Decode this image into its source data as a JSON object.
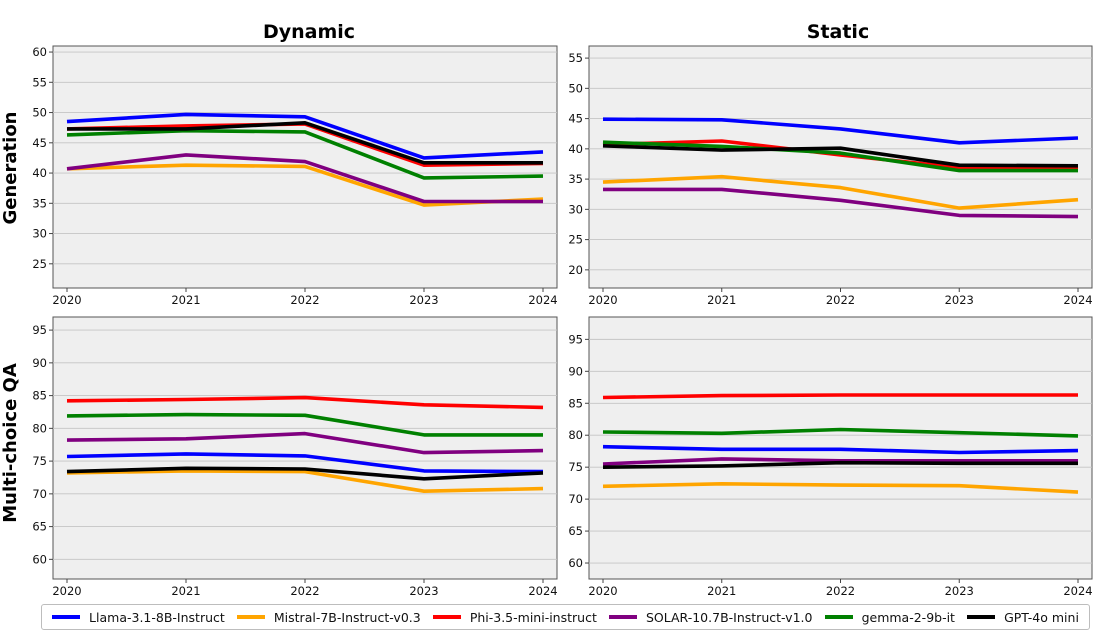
{
  "chart_data": [
    {
      "type": "line",
      "title": "Dynamic",
      "row_label": "Generation",
      "x": [
        "2020",
        "2021",
        "2022",
        "2023",
        "2024"
      ],
      "ylim": [
        21,
        61
      ],
      "yticks": [
        25,
        30,
        35,
        40,
        45,
        50,
        55,
        60
      ],
      "grid": true,
      "series": [
        {
          "name": "Llama-3.1-8B-Instruct",
          "values": [
            48.5,
            49.7,
            49.3,
            42.5,
            43.5
          ]
        },
        {
          "name": "Mistral-7B-Instruct-v0.3",
          "values": [
            40.7,
            41.3,
            41.1,
            34.7,
            35.7
          ]
        },
        {
          "name": "Phi-3.5-mini-instruct",
          "values": [
            47.3,
            47.8,
            48.1,
            41.3,
            41.6
          ]
        },
        {
          "name": "SOLAR-10.7B-Instruct-v1.0",
          "values": [
            40.7,
            43.0,
            41.9,
            35.3,
            35.3
          ]
        },
        {
          "name": "gemma-2-9b-it",
          "values": [
            46.3,
            47.0,
            46.8,
            39.2,
            39.5
          ]
        },
        {
          "name": "GPT-4o mini",
          "values": [
            47.3,
            47.3,
            48.3,
            41.7,
            41.7
          ]
        }
      ]
    },
    {
      "type": "line",
      "title": "Static",
      "x": [
        "2020",
        "2021",
        "2022",
        "2023",
        "2024"
      ],
      "ylim": [
        17,
        57
      ],
      "yticks": [
        20,
        25,
        30,
        35,
        40,
        45,
        50,
        55
      ],
      "grid": true,
      "series": [
        {
          "name": "Llama-3.1-8B-Instruct",
          "values": [
            44.9,
            44.8,
            43.3,
            41.0,
            41.8
          ]
        },
        {
          "name": "Mistral-7B-Instruct-v0.3",
          "values": [
            34.5,
            35.4,
            33.6,
            30.2,
            31.6
          ]
        },
        {
          "name": "Phi-3.5-mini-instruct",
          "values": [
            40.7,
            41.3,
            39.0,
            36.9,
            36.8
          ]
        },
        {
          "name": "SOLAR-10.7B-Instruct-v1.0",
          "values": [
            33.3,
            33.3,
            31.5,
            29.0,
            28.8
          ]
        },
        {
          "name": "gemma-2-9b-it",
          "values": [
            41.1,
            40.4,
            39.3,
            36.4,
            36.4
          ]
        },
        {
          "name": "GPT-4o mini",
          "values": [
            40.5,
            39.8,
            40.1,
            37.3,
            37.2
          ]
        }
      ]
    },
    {
      "type": "line",
      "row_label": "Multi-choice QA",
      "x": [
        "2020",
        "2021",
        "2022",
        "2023",
        "2024"
      ],
      "ylim": [
        57,
        97
      ],
      "yticks": [
        60,
        65,
        70,
        75,
        80,
        85,
        90,
        95
      ],
      "grid": true,
      "series": [
        {
          "name": "Llama-3.1-8B-Instruct",
          "values": [
            75.7,
            76.1,
            75.8,
            73.5,
            73.4
          ]
        },
        {
          "name": "Mistral-7B-Instruct-v0.3",
          "values": [
            73.2,
            73.5,
            73.4,
            70.4,
            70.8
          ]
        },
        {
          "name": "Phi-3.5-mini-instruct",
          "values": [
            84.2,
            84.4,
            84.7,
            83.6,
            83.2
          ]
        },
        {
          "name": "SOLAR-10.7B-Instruct-v1.0",
          "values": [
            78.2,
            78.4,
            79.2,
            76.3,
            76.6
          ]
        },
        {
          "name": "gemma-2-9b-it",
          "values": [
            81.9,
            82.1,
            82.0,
            79.0,
            79.0
          ]
        },
        {
          "name": "GPT-4o mini",
          "values": [
            73.4,
            73.9,
            73.8,
            72.3,
            73.2
          ]
        }
      ]
    },
    {
      "type": "line",
      "x": [
        "2020",
        "2021",
        "2022",
        "2023",
        "2024"
      ],
      "ylim": [
        57.5,
        98.5
      ],
      "yticks": [
        60,
        65,
        70,
        75,
        80,
        85,
        90,
        95
      ],
      "grid": true,
      "series": [
        {
          "name": "Llama-3.1-8B-Instruct",
          "values": [
            78.2,
            77.8,
            77.8,
            77.3,
            77.6
          ]
        },
        {
          "name": "Mistral-7B-Instruct-v0.3",
          "values": [
            72.0,
            72.4,
            72.2,
            72.1,
            71.1
          ]
        },
        {
          "name": "Phi-3.5-mini-instruct",
          "values": [
            85.9,
            86.2,
            86.3,
            86.3,
            86.3
          ]
        },
        {
          "name": "SOLAR-10.7B-Instruct-v1.0",
          "values": [
            75.5,
            76.3,
            76.0,
            76.0,
            76.0
          ]
        },
        {
          "name": "gemma-2-9b-it",
          "values": [
            80.5,
            80.3,
            80.9,
            80.4,
            79.9
          ]
        },
        {
          "name": "GPT-4o mini",
          "values": [
            75.0,
            75.2,
            75.7,
            75.6,
            75.6
          ]
        }
      ]
    }
  ],
  "legend": {
    "placement": "bottom",
    "items": [
      {
        "label": "Llama-3.1-8B-Instruct",
        "color": "#0000ff"
      },
      {
        "label": "Mistral-7B-Instruct-v0.3",
        "color": "#ffa500"
      },
      {
        "label": "Phi-3.5-mini-instruct",
        "color": "#ff0000"
      },
      {
        "label": "SOLAR-10.7B-Instruct-v1.0",
        "color": "#800080"
      },
      {
        "label": "gemma-2-9b-it",
        "color": "#008000"
      },
      {
        "label": "GPT-4o mini",
        "color": "#000000"
      }
    ]
  }
}
